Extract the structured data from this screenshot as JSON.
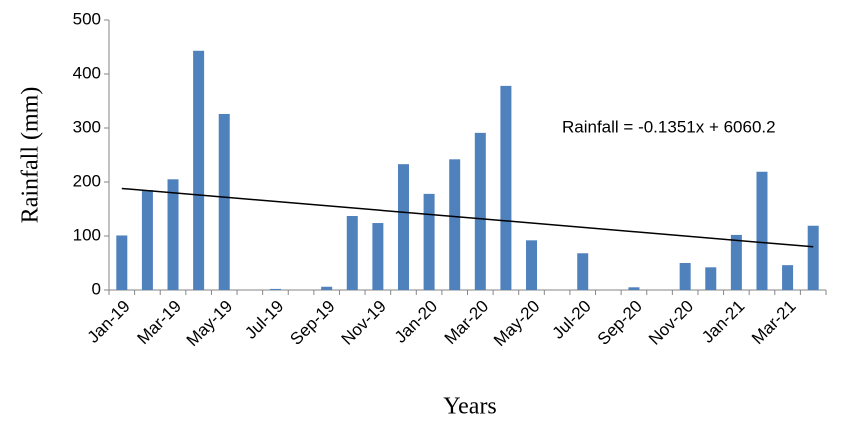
{
  "chart_data": {
    "type": "bar",
    "y_label": "Rainfall (mm)",
    "x_label": "Years",
    "categories": [
      "Jan-19",
      null,
      "Mar-19",
      null,
      "May-19",
      null,
      "Jul-19",
      null,
      "Sep-19",
      null,
      "Nov-19",
      null,
      "Jan-20",
      null,
      "Mar-20",
      null,
      "May-20",
      null,
      "Jul-20",
      null,
      "Sep-20",
      null,
      "Nov-20",
      null,
      "Jan-21",
      null,
      "Mar-21",
      null
    ],
    "values": [
      101,
      185,
      205,
      443,
      326,
      0,
      2,
      0,
      6,
      137,
      124,
      233,
      178,
      242,
      291,
      378,
      92,
      0,
      68,
      0,
      5,
      0,
      50,
      42,
      102,
      219,
      46,
      119
    ],
    "color": "#4f81bd",
    "ylim": [
      0,
      500
    ],
    "yticks": [
      0,
      100,
      200,
      300,
      400,
      500
    ],
    "trendline": {
      "label": "Rainfall = -0.1351x + 6060.2",
      "values": [
        188,
        80
      ]
    }
  }
}
